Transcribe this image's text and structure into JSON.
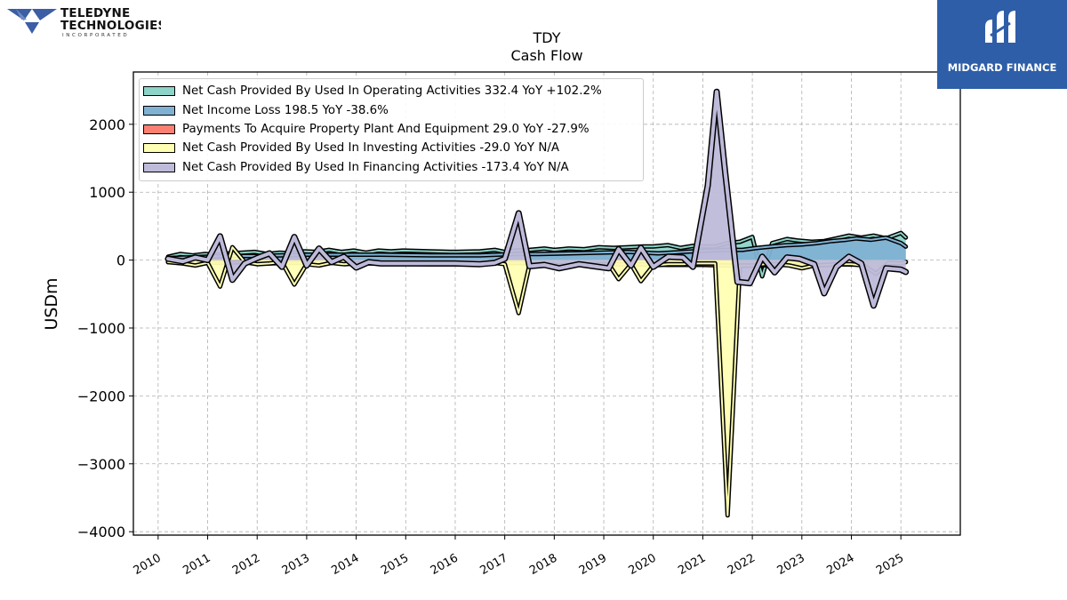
{
  "header": {
    "logo_name_line1": "TELEDYNE",
    "logo_name_line2": "TECHNOLOGIES",
    "logo_sub": "INCORPORATED",
    "badge_text": "MIDGARD FINANCE"
  },
  "colors": {
    "operating": "#8dd3c7",
    "net_income": "#80b1d3",
    "capex": "#fb8072",
    "investing": "#ffffb3",
    "financing": "#bebada",
    "badge_bg": "#2e5ea8"
  },
  "chart_data": {
    "type": "area",
    "title": "TDY",
    "subtitle": "Cash Flow",
    "xlabel": "",
    "ylabel": "USDm",
    "xlim": [
      2009.5,
      2026.2
    ],
    "ylim": [
      -4050,
      2770
    ],
    "yticks": [
      -4000,
      -3000,
      -2000,
      -1000,
      0,
      1000,
      2000
    ],
    "ytick_labels": [
      "−4000",
      "−3000",
      "−2000",
      "−1000",
      "0",
      "1000",
      "2000"
    ],
    "xticks": [
      2010,
      2011,
      2012,
      2013,
      2014,
      2015,
      2016,
      2017,
      2018,
      2019,
      2020,
      2021,
      2022,
      2023,
      2024,
      2025
    ],
    "xtick_labels": [
      "2010",
      "2011",
      "2012",
      "2013",
      "2014",
      "2015",
      "2016",
      "2017",
      "2018",
      "2019",
      "2020",
      "2021",
      "2022",
      "2023",
      "2024",
      "2025"
    ],
    "grid": true,
    "legend_position": "top-left",
    "series": [
      {
        "name": "Net Cash Provided By Used In Operating Activities",
        "legend": "Net Cash Provided By Used In Operating Activities  332.4 YoY +102.2%",
        "color": "#8dd3c7",
        "points": [
          [
            2010.2,
            50
          ],
          [
            2010.45,
            90
          ],
          [
            2010.7,
            70
          ],
          [
            2010.95,
            90
          ],
          [
            2011.2,
            80
          ],
          [
            2011.45,
            100
          ],
          [
            2011.7,
            110
          ],
          [
            2011.95,
            120
          ],
          [
            2012.2,
            90
          ],
          [
            2012.45,
            110
          ],
          [
            2012.7,
            100
          ],
          [
            2012.95,
            130
          ],
          [
            2013.2,
            120
          ],
          [
            2013.45,
            150
          ],
          [
            2013.7,
            120
          ],
          [
            2013.95,
            140
          ],
          [
            2014.2,
            110
          ],
          [
            2014.45,
            140
          ],
          [
            2014.7,
            130
          ],
          [
            2014.95,
            140
          ],
          [
            2015.5,
            130
          ],
          [
            2016.0,
            120
          ],
          [
            2016.5,
            130
          ],
          [
            2016.8,
            150
          ],
          [
            2017.0,
            120
          ],
          [
            2017.2,
            140
          ],
          [
            2017.5,
            150
          ],
          [
            2017.8,
            170
          ],
          [
            2018.0,
            150
          ],
          [
            2018.3,
            170
          ],
          [
            2018.6,
            160
          ],
          [
            2018.9,
            190
          ],
          [
            2019.2,
            180
          ],
          [
            2019.5,
            190
          ],
          [
            2019.8,
            200
          ],
          [
            2020.0,
            200
          ],
          [
            2020.3,
            220
          ],
          [
            2020.55,
            180
          ],
          [
            2020.8,
            210
          ],
          [
            2021.0,
            200
          ],
          [
            2021.25,
            200
          ],
          [
            2021.5,
            250
          ],
          [
            2021.75,
            270
          ],
          [
            2022.0,
            340
          ],
          [
            2022.2,
            -240
          ],
          [
            2022.4,
            250
          ],
          [
            2022.7,
            310
          ],
          [
            2022.9,
            290
          ],
          [
            2023.2,
            270
          ],
          [
            2023.45,
            280
          ],
          [
            2023.7,
            320
          ],
          [
            2023.95,
            360
          ],
          [
            2024.2,
            330
          ],
          [
            2024.45,
            360
          ],
          [
            2024.7,
            320
          ],
          [
            2025.0,
            400
          ],
          [
            2025.1,
            332.4
          ]
        ]
      },
      {
        "name": "Net Income Loss",
        "legend": "Net Income Loss  198.5 YoY -38.6%",
        "color": "#80b1d3",
        "points": [
          [
            2010.2,
            30
          ],
          [
            2010.6,
            40
          ],
          [
            2011.0,
            50
          ],
          [
            2011.5,
            60
          ],
          [
            2012.0,
            60
          ],
          [
            2012.5,
            70
          ],
          [
            2013.0,
            80
          ],
          [
            2013.5,
            80
          ],
          [
            2014.0,
            80
          ],
          [
            2014.5,
            80
          ],
          [
            2015.5,
            70
          ],
          [
            2016.5,
            70
          ],
          [
            2017.2,
            90
          ],
          [
            2017.7,
            90
          ],
          [
            2018.3,
            100
          ],
          [
            2018.9,
            110
          ],
          [
            2019.5,
            120
          ],
          [
            2020.1,
            100
          ],
          [
            2020.6,
            120
          ],
          [
            2021.1,
            140
          ],
          [
            2021.5,
            150
          ],
          [
            2021.8,
            150
          ],
          [
            2022.1,
            180
          ],
          [
            2022.4,
            200
          ],
          [
            2022.7,
            220
          ],
          [
            2023.0,
            230
          ],
          [
            2023.3,
            250
          ],
          [
            2023.6,
            280
          ],
          [
            2023.9,
            300
          ],
          [
            2024.1,
            320
          ],
          [
            2024.4,
            300
          ],
          [
            2024.7,
            330
          ],
          [
            2025.0,
            250
          ],
          [
            2025.1,
            198.5
          ]
        ]
      },
      {
        "name": "Payments To Acquire Property Plant And Equipment",
        "legend": "Payments To Acquire Property Plant And Equipment  29.0 YoY -27.9%",
        "color": "#fb8072",
        "points": [
          [
            2010.2,
            -30
          ],
          [
            2010.7,
            -20
          ],
          [
            2011.2,
            -40
          ],
          [
            2011.7,
            -30
          ],
          [
            2012.2,
            -50
          ],
          [
            2012.7,
            -40
          ],
          [
            2013.2,
            -40
          ],
          [
            2013.7,
            -30
          ],
          [
            2014.2,
            -40
          ],
          [
            2015.5,
            -40
          ],
          [
            2016.5,
            -50
          ],
          [
            2017.2,
            -40
          ],
          [
            2017.7,
            -50
          ],
          [
            2018.3,
            -60
          ],
          [
            2019.0,
            -60
          ],
          [
            2019.7,
            -60
          ],
          [
            2020.3,
            -70
          ],
          [
            2021.0,
            -70
          ],
          [
            2021.5,
            -80
          ],
          [
            2022.0,
            -80
          ],
          [
            2022.6,
            -70
          ],
          [
            2023.2,
            -80
          ],
          [
            2023.7,
            -60
          ],
          [
            2024.3,
            -70
          ],
          [
            2024.8,
            -60
          ],
          [
            2025.1,
            -29
          ]
        ]
      },
      {
        "name": "Net Cash Provided By Used In Investing Activities",
        "legend": "Net Cash Provided By Used In Investing Activities  -29.0 YoY N/A",
        "color": "#ffffb3",
        "points": [
          [
            2010.2,
            -30
          ],
          [
            2010.5,
            -50
          ],
          [
            2010.75,
            -80
          ],
          [
            2011.0,
            -40
          ],
          [
            2011.25,
            -390
          ],
          [
            2011.5,
            190
          ],
          [
            2011.75,
            -30
          ],
          [
            2012.0,
            -60
          ],
          [
            2012.25,
            -50
          ],
          [
            2012.5,
            -30
          ],
          [
            2012.75,
            -360
          ],
          [
            2013.0,
            -60
          ],
          [
            2013.25,
            -80
          ],
          [
            2013.5,
            -40
          ],
          [
            2013.75,
            -60
          ],
          [
            2014.0,
            -50
          ],
          [
            2014.5,
            -50
          ],
          [
            2015.5,
            -60
          ],
          [
            2016.5,
            -60
          ],
          [
            2016.8,
            -40
          ],
          [
            2017.0,
            -60
          ],
          [
            2017.28,
            -780
          ],
          [
            2017.5,
            -70
          ],
          [
            2017.8,
            -50
          ],
          [
            2018.1,
            -80
          ],
          [
            2018.5,
            -60
          ],
          [
            2018.8,
            -60
          ],
          [
            2019.1,
            -60
          ],
          [
            2019.3,
            -280
          ],
          [
            2019.55,
            -60
          ],
          [
            2019.75,
            -310
          ],
          [
            2020.0,
            -80
          ],
          [
            2020.3,
            -60
          ],
          [
            2020.6,
            -60
          ],
          [
            2020.9,
            -50
          ],
          [
            2021.1,
            -50
          ],
          [
            2021.25,
            -50
          ],
          [
            2021.5,
            -3760
          ],
          [
            2021.75,
            -80
          ],
          [
            2022.0,
            -80
          ],
          [
            2022.25,
            -60
          ],
          [
            2022.5,
            -60
          ],
          [
            2022.75,
            -80
          ],
          [
            2023.0,
            -120
          ],
          [
            2023.25,
            -80
          ],
          [
            2023.5,
            -70
          ],
          [
            2023.75,
            -60
          ],
          [
            2024.0,
            -60
          ],
          [
            2024.25,
            -80
          ],
          [
            2024.5,
            -200
          ],
          [
            2024.75,
            -40
          ],
          [
            2025.0,
            -50
          ],
          [
            2025.1,
            -29
          ]
        ]
      },
      {
        "name": "Net Cash Provided By Used In Financing Activities",
        "legend": "Net Cash Provided By Used In Financing Activities  -173.4 YoY N/A",
        "color": "#bebada",
        "points": [
          [
            2010.2,
            20
          ],
          [
            2010.5,
            -20
          ],
          [
            2010.75,
            40
          ],
          [
            2011.0,
            0
          ],
          [
            2011.25,
            350
          ],
          [
            2011.5,
            -290
          ],
          [
            2011.75,
            -50
          ],
          [
            2012.0,
            30
          ],
          [
            2012.25,
            100
          ],
          [
            2012.5,
            -100
          ],
          [
            2012.75,
            340
          ],
          [
            2013.0,
            -80
          ],
          [
            2013.25,
            170
          ],
          [
            2013.5,
            -30
          ],
          [
            2013.75,
            50
          ],
          [
            2014.0,
            -110
          ],
          [
            2014.25,
            -30
          ],
          [
            2014.5,
            -50
          ],
          [
            2015.5,
            -50
          ],
          [
            2016.0,
            -50
          ],
          [
            2016.5,
            -60
          ],
          [
            2016.8,
            -40
          ],
          [
            2017.0,
            20
          ],
          [
            2017.28,
            690
          ],
          [
            2017.5,
            -90
          ],
          [
            2017.8,
            -70
          ],
          [
            2018.1,
            -120
          ],
          [
            2018.5,
            -60
          ],
          [
            2018.8,
            -90
          ],
          [
            2019.1,
            -120
          ],
          [
            2019.3,
            160
          ],
          [
            2019.55,
            -80
          ],
          [
            2019.75,
            180
          ],
          [
            2020.0,
            -100
          ],
          [
            2020.3,
            50
          ],
          [
            2020.6,
            40
          ],
          [
            2020.8,
            -100
          ],
          [
            2021.1,
            1100
          ],
          [
            2021.28,
            2480
          ],
          [
            2021.45,
            1300
          ],
          [
            2021.7,
            -320
          ],
          [
            2021.95,
            -340
          ],
          [
            2022.2,
            50
          ],
          [
            2022.45,
            -180
          ],
          [
            2022.7,
            40
          ],
          [
            2022.95,
            20
          ],
          [
            2023.25,
            -60
          ],
          [
            2023.45,
            -490
          ],
          [
            2023.7,
            -100
          ],
          [
            2023.95,
            50
          ],
          [
            2024.2,
            -50
          ],
          [
            2024.45,
            -670
          ],
          [
            2024.7,
            -120
          ],
          [
            2025.0,
            -140
          ],
          [
            2025.1,
            -173.4
          ]
        ]
      }
    ]
  }
}
